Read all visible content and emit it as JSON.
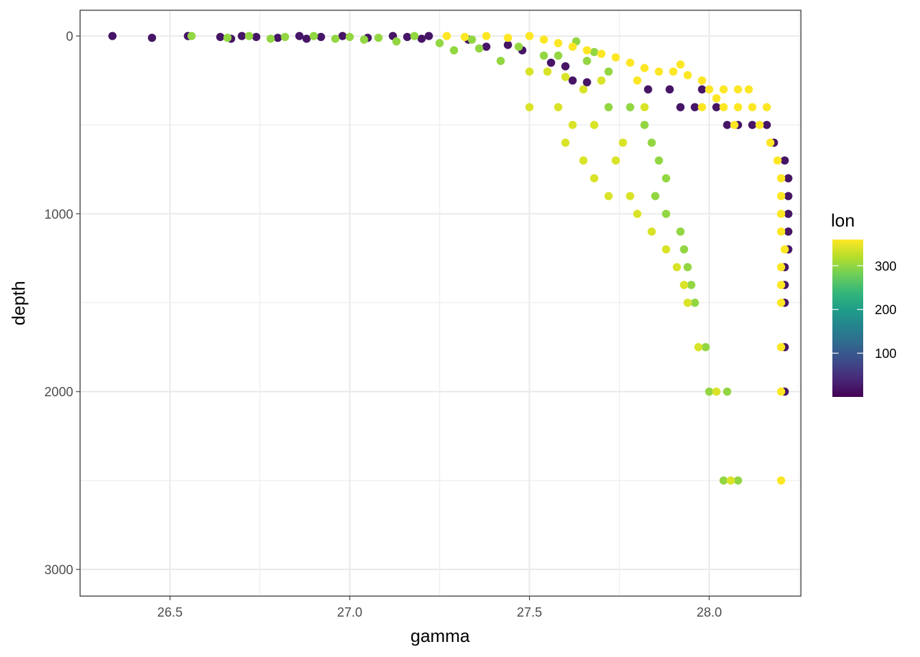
{
  "chart_data": {
    "type": "scatter",
    "title": "",
    "xlabel": "gamma",
    "ylabel": "depth",
    "xlim": [
      26.25,
      28.255
    ],
    "ylim": [
      3150,
      -145
    ],
    "y_reversed": true,
    "grid": true,
    "x_ticks": [
      26.5,
      27.0,
      27.5,
      28.0
    ],
    "x_tick_labels": [
      "26.5",
      "27.0",
      "27.5",
      "28.0"
    ],
    "y_ticks": [
      0,
      1000,
      2000,
      3000
    ],
    "y_tick_labels": [
      "0",
      "1000",
      "2000",
      "3000"
    ],
    "legend": {
      "title": "lon",
      "placement": "right",
      "type": "colorbar",
      "range": [
        0,
        360
      ],
      "ticks": [
        100,
        200,
        300
      ],
      "tick_labels": [
        "100",
        "200",
        "300"
      ],
      "palette": [
        "#440154",
        "#482878",
        "#3e4a89",
        "#31688e",
        "#26828e",
        "#1f9e89",
        "#35b779",
        "#6ece58",
        "#b5de2b",
        "#fde725"
      ]
    },
    "colors": {
      "low": "#440154",
      "mid_high": "#86d549",
      "high": "#d2e21b",
      "max": "#fde725"
    },
    "series": [
      {
        "name": "lon=20",
        "lon": 20,
        "points": [
          [
            26.34,
            0
          ],
          [
            26.45,
            10
          ],
          [
            26.55,
            0
          ],
          [
            26.64,
            5
          ],
          [
            26.67,
            15
          ],
          [
            26.7,
            0
          ],
          [
            26.74,
            5
          ],
          [
            26.8,
            10
          ],
          [
            26.86,
            0
          ],
          [
            26.88,
            15
          ],
          [
            26.92,
            5
          ],
          [
            26.98,
            0
          ],
          [
            27.05,
            10
          ],
          [
            27.12,
            0
          ],
          [
            27.16,
            5
          ],
          [
            27.2,
            15
          ],
          [
            27.22,
            0
          ],
          [
            27.33,
            20
          ],
          [
            27.38,
            60
          ],
          [
            27.44,
            50
          ],
          [
            27.48,
            80
          ],
          [
            27.56,
            150
          ],
          [
            27.6,
            170
          ],
          [
            27.62,
            250
          ],
          [
            27.66,
            260
          ],
          [
            27.83,
            300
          ],
          [
            27.89,
            300
          ],
          [
            27.92,
            400
          ],
          [
            27.96,
            400
          ],
          [
            27.98,
            300
          ],
          [
            28.02,
            400
          ],
          [
            28.05,
            500
          ],
          [
            28.08,
            500
          ],
          [
            28.12,
            500
          ],
          [
            28.16,
            500
          ],
          [
            28.18,
            600
          ],
          [
            28.21,
            700
          ],
          [
            28.22,
            800
          ],
          [
            28.22,
            900
          ],
          [
            28.22,
            1000
          ],
          [
            28.22,
            1100
          ],
          [
            28.22,
            1200
          ],
          [
            28.21,
            1300
          ],
          [
            28.21,
            1400
          ],
          [
            28.21,
            1500
          ],
          [
            28.21,
            1750
          ],
          [
            28.21,
            2000
          ]
        ]
      },
      {
        "name": "lon=300",
        "lon": 300,
        "points": [
          [
            26.56,
            0
          ],
          [
            26.66,
            10
          ],
          [
            26.72,
            0
          ],
          [
            26.78,
            15
          ],
          [
            26.82,
            5
          ],
          [
            26.9,
            0
          ],
          [
            26.96,
            15
          ],
          [
            27.0,
            5
          ],
          [
            27.04,
            20
          ],
          [
            27.08,
            10
          ],
          [
            27.13,
            30
          ],
          [
            27.18,
            0
          ],
          [
            27.25,
            40
          ],
          [
            27.29,
            80
          ],
          [
            27.34,
            20
          ],
          [
            27.36,
            70
          ],
          [
            27.42,
            140
          ],
          [
            27.47,
            60
          ],
          [
            27.54,
            110
          ],
          [
            27.58,
            110
          ],
          [
            27.63,
            30
          ],
          [
            27.66,
            140
          ],
          [
            27.68,
            90
          ],
          [
            27.72,
            200
          ],
          [
            27.72,
            400
          ],
          [
            27.78,
            400
          ],
          [
            27.82,
            500
          ],
          [
            27.84,
            600
          ],
          [
            27.86,
            700
          ],
          [
            27.88,
            800
          ],
          [
            27.85,
            900
          ],
          [
            27.88,
            1000
          ],
          [
            27.92,
            1100
          ],
          [
            27.93,
            1200
          ],
          [
            27.94,
            1300
          ],
          [
            27.95,
            1400
          ],
          [
            27.96,
            1500
          ],
          [
            27.99,
            1750
          ],
          [
            28.0,
            2000
          ],
          [
            28.05,
            2000
          ],
          [
            28.04,
            2500
          ],
          [
            28.08,
            2500
          ]
        ]
      },
      {
        "name": "lon=340",
        "lon": 340,
        "points": [
          [
            27.5,
            200
          ],
          [
            27.55,
            200
          ],
          [
            27.6,
            230
          ],
          [
            27.65,
            300
          ],
          [
            27.7,
            250
          ],
          [
            27.5,
            400
          ],
          [
            27.58,
            400
          ],
          [
            27.62,
            500
          ],
          [
            27.68,
            500
          ],
          [
            27.6,
            600
          ],
          [
            27.65,
            700
          ],
          [
            27.68,
            800
          ],
          [
            27.72,
            900
          ],
          [
            27.78,
            900
          ],
          [
            27.8,
            1000
          ],
          [
            27.84,
            1100
          ],
          [
            27.88,
            1200
          ],
          [
            27.91,
            1300
          ],
          [
            27.93,
            1400
          ],
          [
            27.94,
            1500
          ],
          [
            27.97,
            1750
          ],
          [
            28.02,
            2000
          ],
          [
            28.06,
            2500
          ],
          [
            27.82,
            400
          ],
          [
            27.76,
            600
          ],
          [
            27.74,
            700
          ]
        ]
      },
      {
        "name": "lon=360",
        "lon": 360,
        "points": [
          [
            27.27,
            0
          ],
          [
            27.32,
            5
          ],
          [
            27.38,
            0
          ],
          [
            27.44,
            10
          ],
          [
            27.5,
            0
          ],
          [
            27.54,
            20
          ],
          [
            27.58,
            40
          ],
          [
            27.62,
            60
          ],
          [
            27.66,
            80
          ],
          [
            27.7,
            100
          ],
          [
            27.74,
            120
          ],
          [
            27.78,
            150
          ],
          [
            27.82,
            180
          ],
          [
            27.86,
            200
          ],
          [
            27.9,
            200
          ],
          [
            27.94,
            220
          ],
          [
            27.98,
            250
          ],
          [
            28.0,
            300
          ],
          [
            28.04,
            300
          ],
          [
            28.08,
            300
          ],
          [
            28.11,
            300
          ],
          [
            27.98,
            400
          ],
          [
            28.04,
            400
          ],
          [
            28.08,
            400
          ],
          [
            28.12,
            400
          ],
          [
            28.16,
            400
          ],
          [
            28.02,
            350
          ],
          [
            28.07,
            500
          ],
          [
            28.14,
            500
          ],
          [
            28.17,
            600
          ],
          [
            28.19,
            700
          ],
          [
            28.2,
            800
          ],
          [
            28.2,
            900
          ],
          [
            28.2,
            1000
          ],
          [
            28.2,
            1100
          ],
          [
            28.21,
            1200
          ],
          [
            28.2,
            1300
          ],
          [
            28.2,
            1400
          ],
          [
            28.2,
            1500
          ],
          [
            28.2,
            1750
          ],
          [
            28.2,
            2000
          ],
          [
            28.2,
            2500
          ],
          [
            27.8,
            250
          ],
          [
            27.92,
            160
          ]
        ]
      }
    ]
  }
}
